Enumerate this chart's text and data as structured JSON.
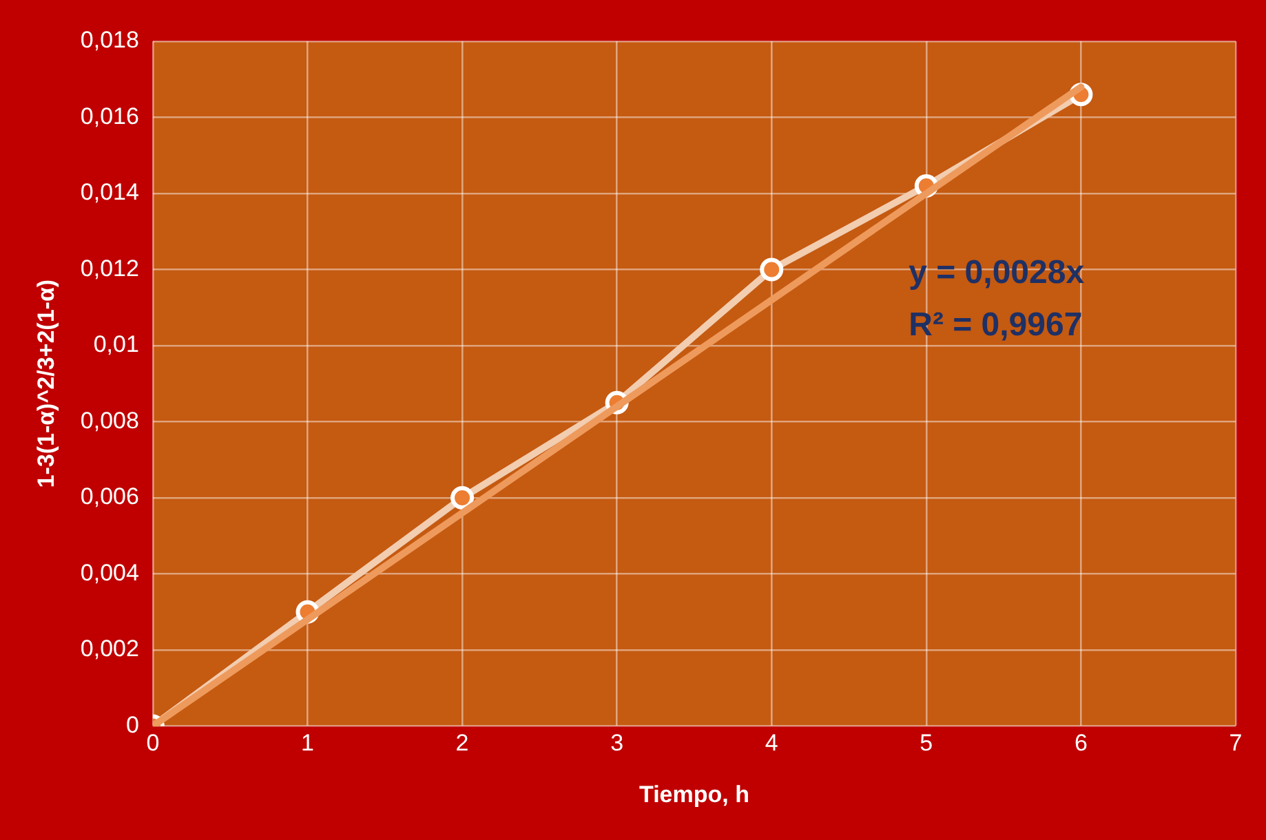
{
  "chart_data": {
    "type": "line",
    "xlabel": "Tiempo, h",
    "ylabel": "1-3(1-α)^2/3+2(1-α)",
    "x": [
      0,
      1,
      2,
      3,
      4,
      5,
      6
    ],
    "series": [
      {
        "color": "#f2cdb0",
        "values": [
          0,
          0.003,
          0.006,
          0.0085,
          0.012,
          0.0142,
          0.0166
        ],
        "marker": "circle"
      },
      {
        "type": "line",
        "color": "#ee9a5c",
        "x": [
          0,
          6
        ],
        "values": [
          0,
          0.0168
        ],
        "marker": "none"
      }
    ],
    "xlim": [
      0,
      7
    ],
    "xticks": [
      0,
      1,
      2,
      3,
      4,
      5,
      6,
      7
    ],
    "ylim": [
      0,
      0.018
    ],
    "yticks": [
      0,
      {
        "value": 0.002,
        "label": "0,002"
      },
      {
        "value": 0.004,
        "label": "0,004"
      },
      {
        "value": 0.006,
        "label": "0,006"
      },
      {
        "value": 0.008,
        "label": "0,008"
      },
      {
        "value": 0.01,
        "label": "0,01"
      },
      {
        "value": 0.012,
        "label": "0,012"
      },
      {
        "value": 0.014,
        "label": "0,014"
      },
      {
        "value": 0.016,
        "label": "0,016"
      },
      {
        "value": 0.018,
        "label": "0,018"
      }
    ],
    "grid": true,
    "legend": false,
    "annotations": [
      "y = 0,0028x",
      "R² = 0,9967"
    ]
  }
}
